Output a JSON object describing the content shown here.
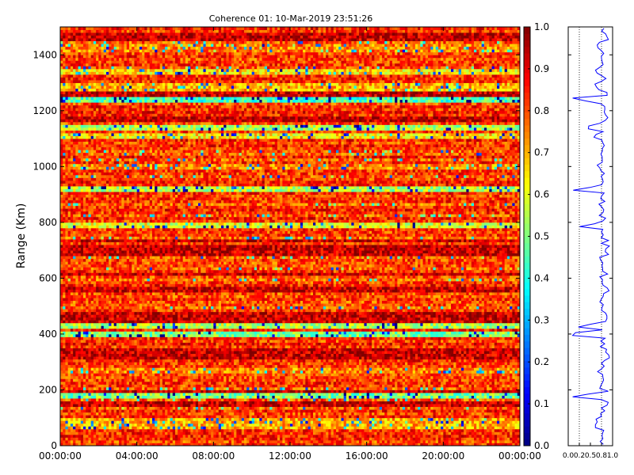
{
  "chart_data": [
    {
      "type": "heatmap",
      "title": "Coherence 01: 10-Mar-2019 23:51:26",
      "xlabel": "",
      "ylabel": "Range (Km)",
      "xlim": [
        "00:00:00",
        "24:00:00"
      ],
      "ylim": [
        0,
        1500
      ],
      "x_ticks": [
        "00:00:00",
        "04:00:00",
        "08:00:00",
        "12:00:00",
        "16:00:00",
        "20:00:00",
        "00:00:00"
      ],
      "y_ticks": [
        "0",
        "200",
        "400",
        "600",
        "800",
        "1000",
        "1200",
        "1400"
      ],
      "y_tick_values": [
        0,
        200,
        400,
        600,
        800,
        1000,
        1200,
        1400
      ],
      "value_range": [
        0.0,
        1.0
      ],
      "colormap": "jet",
      "grid": false,
      "low_coherence_bands_km": [
        {
          "center": 80,
          "width": 20,
          "level": 0.55
        },
        {
          "center": 178,
          "width": 8,
          "level": 0.35
        },
        {
          "center": 268,
          "width": 10,
          "level": 0.6
        },
        {
          "center": 398,
          "width": 8,
          "level": 0.35
        },
        {
          "center": 432,
          "width": 12,
          "level": 0.4
        },
        {
          "center": 508,
          "width": 12,
          "level": 0.65
        },
        {
          "center": 792,
          "width": 8,
          "level": 0.45
        },
        {
          "center": 920,
          "width": 18,
          "level": 0.4
        },
        {
          "center": 1002,
          "width": 10,
          "level": 0.6
        },
        {
          "center": 1110,
          "width": 8,
          "level": 0.5
        },
        {
          "center": 1140,
          "width": 8,
          "level": 0.4
        },
        {
          "center": 1240,
          "width": 16,
          "level": 0.3
        },
        {
          "center": 1285,
          "width": 10,
          "level": 0.55
        },
        {
          "center": 1340,
          "width": 12,
          "level": 0.5
        },
        {
          "center": 1425,
          "width": 10,
          "level": 0.6
        }
      ],
      "high_coherence_bands_km": [
        {
          "center": 150,
          "width": 8
        },
        {
          "center": 195,
          "width": 6
        },
        {
          "center": 330,
          "width": 25
        },
        {
          "center": 460,
          "width": 30
        },
        {
          "center": 560,
          "width": 6
        },
        {
          "center": 615,
          "width": 8
        },
        {
          "center": 700,
          "width": 25
        },
        {
          "center": 735,
          "width": 6
        },
        {
          "center": 1170,
          "width": 15
        },
        {
          "center": 1257,
          "width": 6
        },
        {
          "center": 1465,
          "width": 20
        }
      ]
    },
    {
      "type": "colorbar",
      "ticks": [
        "0.0",
        "0.1",
        "0.2",
        "0.3",
        "0.4",
        "0.5",
        "0.6",
        "0.7",
        "0.8",
        "0.9",
        "1.0"
      ],
      "tick_values": [
        0.0,
        0.1,
        0.2,
        0.3,
        0.4,
        0.5,
        0.6,
        0.7,
        0.8,
        0.9,
        1.0
      ]
    },
    {
      "type": "line",
      "x_ticks": [
        "0.0",
        "0.2",
        "0.5",
        "0.8",
        "1.0"
      ],
      "x_tick_values": [
        0.0,
        0.25,
        0.5,
        0.75,
        1.0
      ],
      "xlim": [
        0,
        1
      ],
      "ylim": [
        0,
        1500
      ],
      "color": "#0000ff",
      "reference_lines_x": [
        0.25,
        0.75
      ],
      "description_of_values": "mean coherence per range gate"
    }
  ]
}
